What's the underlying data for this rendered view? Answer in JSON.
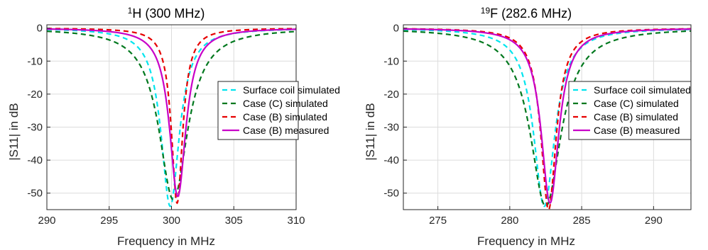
{
  "chart_data": [
    {
      "type": "line",
      "title_sup": "1",
      "title": "H (300 MHz)",
      "xlabel": "Frequency in MHz",
      "ylabel": "|S11| in dB",
      "xlim": [
        290,
        310
      ],
      "ylim": [
        -55,
        1
      ],
      "xticks": [
        290,
        295,
        300,
        305,
        310
      ],
      "yticks": [
        0,
        -10,
        -20,
        -30,
        -40,
        -50
      ],
      "grid": true,
      "legend_position": "right",
      "series": [
        {
          "name": "Surface coil simulated",
          "color": "#00e5ee",
          "dash": "dashed",
          "f0": 299.9,
          "width": 0.9,
          "min": -54
        },
        {
          "name": "Case (C) simulated",
          "color": "#00781e",
          "dash": "dashed",
          "f0": 300.15,
          "width": 1.4,
          "min": -52
        },
        {
          "name": "Case (B) simulated",
          "color": "#e60000",
          "dash": "dashed",
          "f0": 300.45,
          "width": 0.55,
          "min": -53
        },
        {
          "name": "Case (B) measured",
          "color": "#c800c8",
          "dash": "solid",
          "f0": 300.5,
          "width": 0.8,
          "min": -51
        }
      ]
    },
    {
      "type": "line",
      "title_sup": "19",
      "title": "F (282.6 MHz)",
      "xlabel": "Frequency in MHz",
      "ylabel": "|S11| in dB",
      "xlim": [
        272.6,
        292.6
      ],
      "ylim": [
        -55,
        1
      ],
      "xticks": [
        275,
        280,
        285,
        290
      ],
      "yticks": [
        0,
        -10,
        -20,
        -30,
        -40,
        -50
      ],
      "grid": true,
      "legend_position": "right",
      "series": [
        {
          "name": "Surface coil simulated",
          "color": "#00e5ee",
          "dash": "dashed",
          "f0": 282.4,
          "width": 0.9,
          "min": -54
        },
        {
          "name": "Case (C) simulated",
          "color": "#00781e",
          "dash": "dashed",
          "f0": 282.5,
          "width": 1.3,
          "min": -54
        },
        {
          "name": "Case (B) simulated",
          "color": "#e60000",
          "dash": "dashed",
          "f0": 282.7,
          "width": 0.65,
          "min": -55
        },
        {
          "name": "Case (B) measured",
          "color": "#c800c8",
          "dash": "solid",
          "f0": 282.8,
          "width": 0.75,
          "min": -53
        }
      ]
    }
  ]
}
